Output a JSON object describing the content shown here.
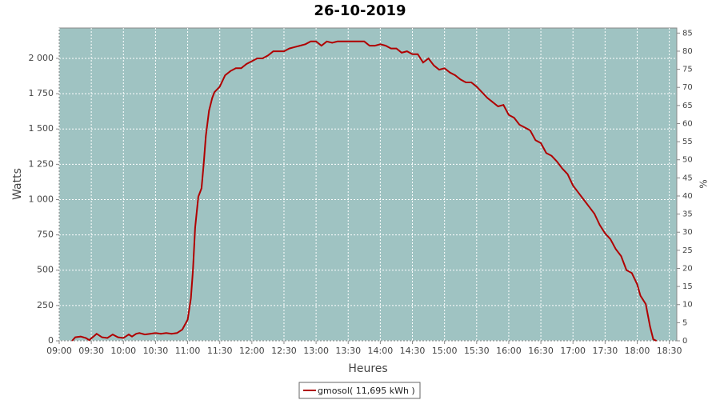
{
  "chart_data": {
    "type": "line",
    "title": "26-10-2019",
    "x_label": "Heures",
    "y_label": "Watts",
    "y2_label": "%",
    "x": [
      "09:12",
      "09:15",
      "09:20",
      "09:25",
      "09:28",
      "09:32",
      "09:35",
      "09:40",
      "09:45",
      "09:50",
      "09:55",
      "10:00",
      "10:05",
      "10:08",
      "10:12",
      "10:15",
      "10:20",
      "10:25",
      "10:30",
      "10:35",
      "10:40",
      "10:45",
      "10:50",
      "10:55",
      "11:00",
      "11:03",
      "11:05",
      "11:07",
      "11:10",
      "11:13",
      "11:15",
      "11:17",
      "11:20",
      "11:23",
      "11:25",
      "11:30",
      "11:35",
      "11:40",
      "11:45",
      "11:50",
      "11:55",
      "12:00",
      "12:05",
      "12:10",
      "12:15",
      "12:20",
      "12:25",
      "12:30",
      "12:35",
      "12:40",
      "12:45",
      "12:50",
      "12:55",
      "13:00",
      "13:05",
      "13:10",
      "13:15",
      "13:20",
      "13:30",
      "13:40",
      "13:45",
      "13:50",
      "13:55",
      "14:00",
      "14:05",
      "14:10",
      "14:15",
      "14:20",
      "14:25",
      "14:30",
      "14:35",
      "14:40",
      "14:45",
      "14:50",
      "14:55",
      "15:00",
      "15:05",
      "15:10",
      "15:15",
      "15:20",
      "15:25",
      "15:30",
      "15:35",
      "15:40",
      "15:45",
      "15:50",
      "15:55",
      "16:00",
      "16:05",
      "16:10",
      "16:15",
      "16:20",
      "16:25",
      "16:30",
      "16:35",
      "16:40",
      "16:45",
      "16:50",
      "16:55",
      "17:00",
      "17:05",
      "17:10",
      "17:15",
      "17:20",
      "17:25",
      "17:30",
      "17:35",
      "17:40",
      "17:45",
      "17:50",
      "17:55",
      "18:00",
      "18:03",
      "18:08",
      "18:12",
      "18:15",
      "18:18"
    ],
    "series": [
      {
        "name": "gmosol( 11,695 kWh )",
        "color": "#b00000",
        "values": [
          0,
          25,
          30,
          20,
          5,
          30,
          50,
          25,
          20,
          45,
          25,
          20,
          45,
          30,
          50,
          55,
          45,
          50,
          55,
          50,
          55,
          50,
          55,
          80,
          150,
          300,
          500,
          800,
          1020,
          1080,
          1250,
          1450,
          1630,
          1720,
          1760,
          1800,
          1880,
          1910,
          1930,
          1930,
          1960,
          1980,
          2000,
          2000,
          2020,
          2050,
          2050,
          2050,
          2070,
          2080,
          2090,
          2100,
          2120,
          2120,
          2090,
          2120,
          2110,
          2120,
          2120,
          2120,
          2120,
          2090,
          2090,
          2100,
          2090,
          2070,
          2070,
          2040,
          2050,
          2030,
          2030,
          1970,
          2000,
          1950,
          1920,
          1930,
          1900,
          1880,
          1850,
          1830,
          1830,
          1800,
          1760,
          1720,
          1690,
          1660,
          1670,
          1600,
          1580,
          1530,
          1510,
          1490,
          1420,
          1400,
          1330,
          1310,
          1270,
          1220,
          1180,
          1100,
          1050,
          1000,
          950,
          900,
          820,
          760,
          720,
          650,
          600,
          500,
          480,
          400,
          320,
          260,
          100,
          10,
          0
        ]
      }
    ],
    "xlim": [
      "09:00",
      "18:37"
    ],
    "xticks": [
      "09:00",
      "09:30",
      "10:00",
      "10:30",
      "11:00",
      "11:30",
      "12:00",
      "12:30",
      "13:00",
      "13:30",
      "14:00",
      "14:30",
      "15:00",
      "15:30",
      "16:00",
      "16:30",
      "17:00",
      "17:30",
      "18:00",
      "18:30"
    ],
    "ylim": [
      0,
      2215
    ],
    "yticks": [
      0,
      250,
      500,
      750,
      {
        "value": 1000,
        "label": "1 000"
      },
      {
        "value": 1250,
        "label": "1 250"
      },
      {
        "value": 1500,
        "label": "1 500"
      },
      {
        "value": 1750,
        "label": "1 750"
      },
      {
        "value": 2000,
        "label": "2 000"
      }
    ],
    "y2lim": [
      0,
      86.4
    ],
    "y2ticks": [
      0,
      5,
      10,
      15,
      20,
      25,
      30,
      35,
      40,
      45,
      50,
      55,
      60,
      65,
      70,
      75,
      80,
      85
    ],
    "grid": true,
    "background": "#9fc3c2"
  }
}
